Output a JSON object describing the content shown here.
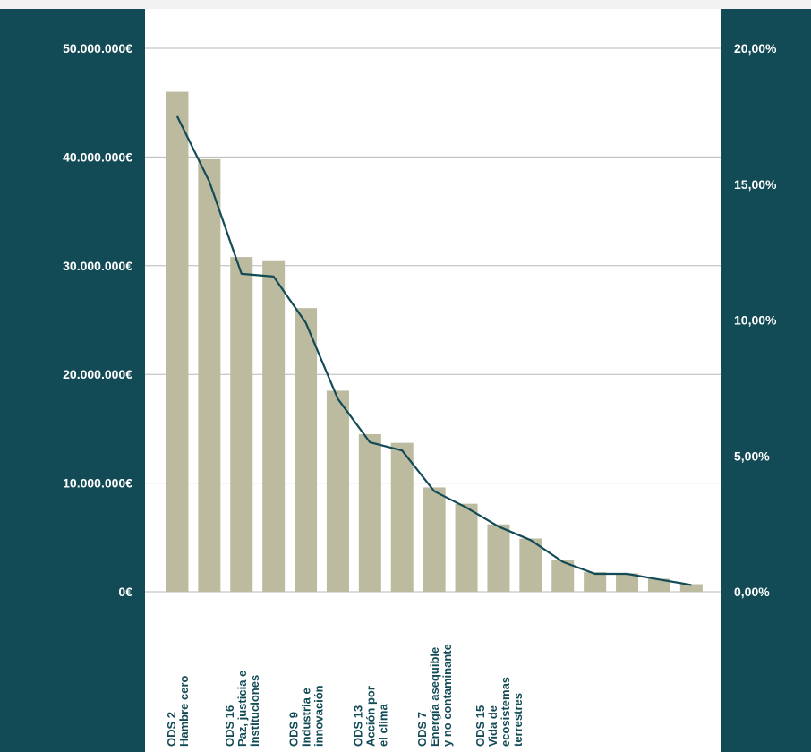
{
  "chart_data": {
    "type": "bar",
    "title": "",
    "xlabel": "",
    "ylabel": "",
    "categories": [
      [
        "ODS 2",
        "Hambre cero"
      ],
      [
        "",
        ""
      ],
      [
        "ODS 16",
        "Paz, justicia e",
        "instituciones"
      ],
      [
        "",
        ""
      ],
      [
        "ODS 9",
        "Industria e",
        "innovación"
      ],
      [
        "",
        ""
      ],
      [
        "ODS 13",
        "Acción por",
        "el clima"
      ],
      [
        "",
        ""
      ],
      [
        "ODS 7",
        "Energía asequible",
        "y no contaminante"
      ],
      [
        "",
        ""
      ],
      [
        "ODS 15",
        "Vida de",
        "ecosistemas",
        "terrestres"
      ],
      [
        "",
        ""
      ],
      [
        "",
        ""
      ],
      [
        "",
        ""
      ],
      [
        "",
        ""
      ],
      [
        "",
        ""
      ],
      [
        "",
        ""
      ]
    ],
    "series": [
      {
        "type": "bar",
        "axis": "left",
        "color": "#bcbba0",
        "values": [
          46000000,
          39800000,
          30800000,
          30500000,
          26100000,
          18500000,
          14500000,
          13700000,
          9600000,
          8100000,
          6200000,
          4900000,
          2900000,
          1800000,
          1700000,
          1200000,
          700000
        ]
      },
      {
        "type": "line",
        "axis": "right",
        "color": "#124a55",
        "values": [
          17.5,
          15.1,
          11.7,
          11.6,
          9.9,
          7.1,
          5.5,
          5.2,
          3.7,
          3.1,
          2.4,
          1.9,
          1.1,
          0.66,
          0.66,
          0.45,
          0.25
        ]
      }
    ],
    "y_left": {
      "min": 0,
      "max": 50000000,
      "ticks": [
        0,
        10000000,
        20000000,
        30000000,
        40000000,
        50000000
      ],
      "tick_labels": [
        "0€",
        "10.000.000€",
        "20.000.000€",
        "30.000.000€",
        "40.000.000€",
        "50.000.000€"
      ]
    },
    "y_right": {
      "min": 0,
      "max": 20,
      "ticks": [
        0,
        5,
        10,
        15,
        20
      ],
      "tick_labels": [
        "0,00%",
        "5,00%",
        "10,00%",
        "15,00%",
        "20,00%"
      ]
    },
    "grid": true,
    "legend": "none"
  },
  "colors": {
    "panel": "#124a55",
    "bar": "#bcbba0",
    "line": "#124a55",
    "grid": "#b8b8b8",
    "plot_background": "#ffffff",
    "page_background": "#f2f2f2"
  }
}
